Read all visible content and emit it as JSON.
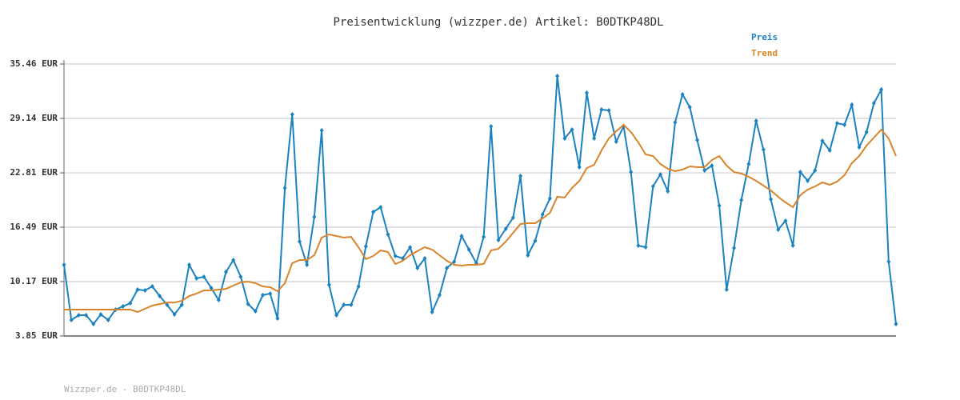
{
  "chart_data": {
    "type": "line",
    "title": "Preisentwicklung (wizzper.de) Artikel: B0DTKP48DL",
    "footer": "Wizzper.de - B0DTKP48DL",
    "ylim": [
      3.85,
      35.46
    ],
    "yticks": [
      {
        "value": 3.85,
        "label": "3.85 EUR"
      },
      {
        "value": 10.17,
        "label": "10.17 EUR"
      },
      {
        "value": 16.49,
        "label": "16.49 EUR"
      },
      {
        "value": 22.81,
        "label": "22.81 EUR"
      },
      {
        "value": 29.14,
        "label": "29.14 EUR"
      },
      {
        "value": 35.46,
        "label": "35.46 EUR"
      }
    ],
    "grid": true,
    "legend": "top-right",
    "series": [
      {
        "name": "Preis",
        "color": "#1a82c0",
        "markers": true,
        "values": [
          12.12,
          5.71,
          6.27,
          6.27,
          5.24,
          6.36,
          5.71,
          6.92,
          7.29,
          7.66,
          9.24,
          9.15,
          9.61,
          8.5,
          7.48,
          6.36,
          7.48,
          12.12,
          10.54,
          10.73,
          9.43,
          8.03,
          11.29,
          12.68,
          10.73,
          7.57,
          6.73,
          8.6,
          8.78,
          5.89,
          21.05,
          29.6,
          14.82,
          12.12,
          17.7,
          27.74,
          9.8,
          6.27,
          7.48,
          7.48,
          9.61,
          14.26,
          18.26,
          18.82,
          15.66,
          13.15,
          12.87,
          14.16,
          11.75,
          12.87,
          6.64,
          8.6,
          11.75,
          12.5,
          15.47,
          13.89,
          12.31,
          15.38,
          28.21,
          15.01,
          16.31,
          17.61,
          22.44,
          13.24,
          14.91,
          17.98,
          19.84,
          34.07,
          26.81,
          27.84,
          23.47,
          32.11,
          26.81,
          30.16,
          30.07,
          26.44,
          28.21,
          22.91,
          14.36,
          14.17,
          21.23,
          22.63,
          20.68,
          28.67,
          31.93,
          30.44,
          26.63,
          23.09,
          23.65,
          19.0,
          9.24,
          14.08,
          19.65,
          23.84,
          28.86,
          25.51,
          19.75,
          16.22,
          17.24,
          14.36,
          22.91,
          21.89,
          23.09,
          26.53,
          25.42,
          28.58,
          28.39,
          30.72,
          25.79,
          27.56,
          30.9,
          32.48,
          12.5,
          5.24
        ]
      },
      {
        "name": "Trend",
        "color": "#d9842a",
        "markers": false,
        "values": [
          6.92,
          6.92,
          6.92,
          6.92,
          6.92,
          6.92,
          6.92,
          6.92,
          6.92,
          6.92,
          6.64,
          7.01,
          7.38,
          7.57,
          7.75,
          7.75,
          7.94,
          8.5,
          8.78,
          9.15,
          9.15,
          9.24,
          9.33,
          9.71,
          10.08,
          10.17,
          9.99,
          9.61,
          9.52,
          9.05,
          9.99,
          12.31,
          12.68,
          12.68,
          13.24,
          15.29,
          15.66,
          15.47,
          15.29,
          15.38,
          14.17,
          12.78,
          13.15,
          13.8,
          13.61,
          12.22,
          12.59,
          13.24,
          13.71,
          14.17,
          13.89,
          13.24,
          12.59,
          12.12,
          12.03,
          12.12,
          12.12,
          12.22,
          13.8,
          13.98,
          14.82,
          15.84,
          16.87,
          16.96,
          16.96,
          17.52,
          18.17,
          20.03,
          19.93,
          21.05,
          21.89,
          23.37,
          23.75,
          25.42,
          26.81,
          27.65,
          28.39,
          27.56,
          26.35,
          24.95,
          24.77,
          23.84,
          23.28,
          23.0,
          23.19,
          23.56,
          23.47,
          23.47,
          24.3,
          24.77,
          23.65,
          22.91,
          22.72,
          22.35,
          21.89,
          21.33,
          20.77,
          20.03,
          19.38,
          18.82,
          20.21,
          20.86,
          21.24,
          21.7,
          21.42,
          21.79,
          22.54,
          23.93,
          24.77,
          25.98,
          26.91,
          27.84,
          26.81,
          24.77
        ]
      }
    ]
  }
}
